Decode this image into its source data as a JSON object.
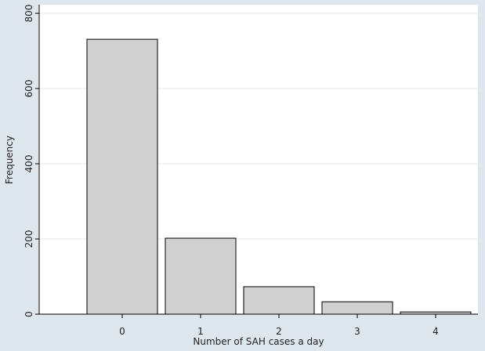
{
  "chart_data": {
    "type": "bar",
    "x": [
      0,
      1,
      2,
      3,
      4
    ],
    "values": [
      731,
      202,
      73,
      33,
      6
    ],
    "color": "#d0d0d0",
    "xlabel": "Number of SAH cases a day",
    "ylabel": "Frequency",
    "xlim": [
      -1.06,
      4.54
    ],
    "xticks": [
      0,
      1,
      2,
      3,
      4
    ],
    "ylim": [
      0,
      800
    ],
    "yticks": [
      0,
      200,
      400,
      600,
      800
    ],
    "grid": true
  }
}
